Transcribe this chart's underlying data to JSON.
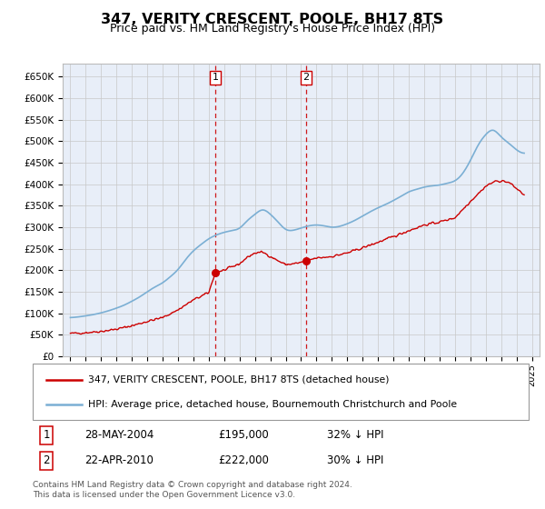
{
  "title": "347, VERITY CRESCENT, POOLE, BH17 8TS",
  "subtitle": "Price paid vs. HM Land Registry's House Price Index (HPI)",
  "hpi_label": "HPI: Average price, detached house, Bournemouth Christchurch and Poole",
  "property_label": "347, VERITY CRESCENT, POOLE, BH17 8TS (detached house)",
  "footer": "Contains HM Land Registry data © Crown copyright and database right 2024.\nThis data is licensed under the Open Government Licence v3.0.",
  "sale1": {
    "label": "1",
    "date": "28-MAY-2004",
    "price": "£195,000",
    "hpi": "32% ↓ HPI",
    "x": 2004.42
  },
  "sale2": {
    "label": "2",
    "date": "22-APR-2010",
    "price": "£222,000",
    "hpi": "30% ↓ HPI",
    "x": 2010.31
  },
  "sale1_value": 195000,
  "sale2_value": 222000,
  "background_color": "#e8eef8",
  "hpi_color": "#7bafd4",
  "property_color": "#cc0000",
  "vline_color": "#cc0000",
  "ylim": [
    0,
    680000
  ],
  "yticks": [
    0,
    50000,
    100000,
    150000,
    200000,
    250000,
    300000,
    350000,
    400000,
    450000,
    500000,
    550000,
    600000,
    650000
  ],
  "xlim": [
    1994.5,
    2025.5
  ],
  "title_fontsize": 11.5,
  "subtitle_fontsize": 9
}
